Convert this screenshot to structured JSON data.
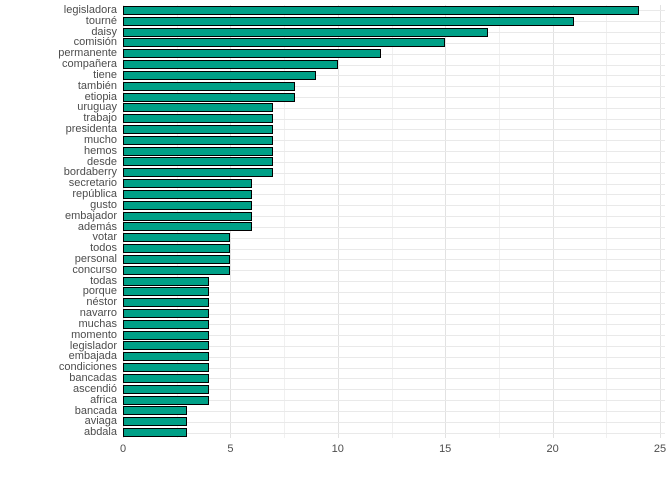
{
  "chart_data": {
    "type": "bar",
    "orientation": "horizontal",
    "title": "",
    "xlabel": "",
    "ylabel": "",
    "legend_position": "none",
    "grid": true,
    "xlim": [
      0,
      25.2
    ],
    "x_ticks": [
      0,
      5,
      10,
      15,
      20,
      25
    ],
    "x_minor_ticks": [
      2.5,
      7.5,
      12.5,
      17.5,
      22.5
    ],
    "bar_fill_color": "#00A087",
    "bar_stroke_color": "#000000",
    "grid_major_color": "#E2E2E2",
    "grid_minor_color": "#F0F0F0",
    "axis_text_color": "#4D4D4D",
    "background_color": "#FFFFFF",
    "categories": [
      "legisladora",
      "tourné",
      "daisy",
      "comisión",
      "permanente",
      "compañera",
      "tiene",
      "también",
      "etiopia",
      "uruguay",
      "trabajo",
      "presidenta",
      "mucho",
      "hemos",
      "desde",
      "bordaberry",
      "secretario",
      "república",
      "gusto",
      "embajador",
      "además",
      "votar",
      "todos",
      "personal",
      "concurso",
      "todas",
      "porque",
      "néstor",
      "navarro",
      "muchas",
      "momento",
      "legislador",
      "embajada",
      "condiciones",
      "bancadas",
      "ascendió",
      "africa",
      "bancada",
      "aviaga",
      "abdala"
    ],
    "values": [
      24,
      21,
      17,
      15,
      12,
      10,
      9,
      8,
      8,
      7,
      7,
      7,
      7,
      7,
      7,
      7,
      6,
      6,
      6,
      6,
      6,
      5,
      5,
      5,
      5,
      4,
      4,
      4,
      4,
      4,
      4,
      4,
      4,
      4,
      4,
      4,
      4,
      3,
      3,
      3
    ]
  }
}
